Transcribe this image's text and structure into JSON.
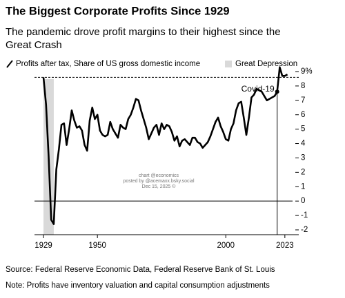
{
  "chart_data": {
    "type": "line",
    "title": "The Biggest Corporate Profits Since 1929",
    "subtitle": [
      "The pandemic drove profit margins to their highest since the",
      "Great Crash"
    ],
    "x": [
      1929,
      1930,
      1931,
      1932,
      1933,
      1934,
      1935,
      1936,
      1937,
      1938,
      1939,
      1940,
      1941,
      1942,
      1943,
      1944,
      1945,
      1946,
      1947,
      1948,
      1949,
      1950,
      1951,
      1952,
      1953,
      1954,
      1955,
      1956,
      1957,
      1958,
      1959,
      1960,
      1961,
      1962,
      1963,
      1964,
      1965,
      1966,
      1967,
      1968,
      1969,
      1970,
      1971,
      1972,
      1973,
      1974,
      1975,
      1976,
      1977,
      1978,
      1979,
      1980,
      1981,
      1982,
      1983,
      1984,
      1985,
      1986,
      1987,
      1988,
      1989,
      1990,
      1991,
      1992,
      1993,
      1994,
      1995,
      1996,
      1997,
      1998,
      1999,
      2000,
      2001,
      2002,
      2003,
      2004,
      2005,
      2006,
      2007,
      2008,
      2009,
      2010,
      2011,
      2012,
      2013,
      2014,
      2015,
      2016,
      2017,
      2018,
      2019,
      2020,
      2021,
      2022,
      2023,
      2024
    ],
    "series": [
      {
        "name": "Profits after tax, Share of US gross domestic income",
        "color": "#000000",
        "values": [
          8.6,
          6.7,
          3.1,
          -1.3,
          -1.6,
          2.2,
          3.6,
          5.3,
          5.4,
          3.9,
          5.0,
          6.3,
          5.6,
          5.1,
          5.2,
          4.9,
          3.9,
          3.5,
          5.6,
          6.5,
          5.7,
          6.0,
          4.9,
          4.6,
          4.5,
          4.6,
          5.5,
          5.0,
          4.7,
          4.4,
          5.3,
          5.1,
          5.0,
          5.7,
          6.0,
          6.5,
          7.1,
          7.0,
          6.3,
          5.7,
          5.1,
          4.3,
          4.7,
          5.1,
          5.3,
          4.6,
          5.4,
          5.0,
          5.3,
          5.2,
          4.8,
          4.2,
          4.5,
          3.8,
          4.2,
          4.3,
          4.1,
          3.9,
          4.4,
          4.4,
          4.1,
          4.0,
          3.7,
          3.9,
          4.1,
          4.5,
          5.0,
          5.5,
          5.8,
          5.2,
          4.8,
          4.3,
          4.2,
          5.0,
          5.4,
          6.3,
          6.8,
          6.9,
          5.8,
          4.6,
          5.8,
          7.2,
          7.4,
          7.8,
          7.7,
          7.6,
          7.3,
          7.0,
          7.1,
          7.2,
          7.3,
          7.6,
          9.3,
          8.7,
          8.7,
          8.8
        ]
      }
    ],
    "shade": {
      "label": "Great Depression",
      "color": "#d9d9d9",
      "range": [
        1929,
        1933
      ]
    },
    "annotation": {
      "text": "Covid-19",
      "x": 2020
    },
    "xlim": [
      1925.5,
      2026
    ],
    "ylim": [
      -2,
      9
    ],
    "xticks": [
      1929,
      1950,
      2000,
      2023
    ],
    "yticks": [
      {
        "value": 9,
        "label": "9%"
      },
      8,
      7,
      6,
      5,
      4,
      3,
      2,
      1,
      0,
      -1,
      -2
    ],
    "watermark": [
      "chart @economics",
      "posted by @acemaxx.bsky.social",
      "Dec 15, 2025 ©"
    ],
    "source": "Source: Federal Reserve Economic Data, Federal Reserve Bank of St. Louis",
    "note": "Note: Profits have inventory valuation and capital consumption adjustments"
  }
}
